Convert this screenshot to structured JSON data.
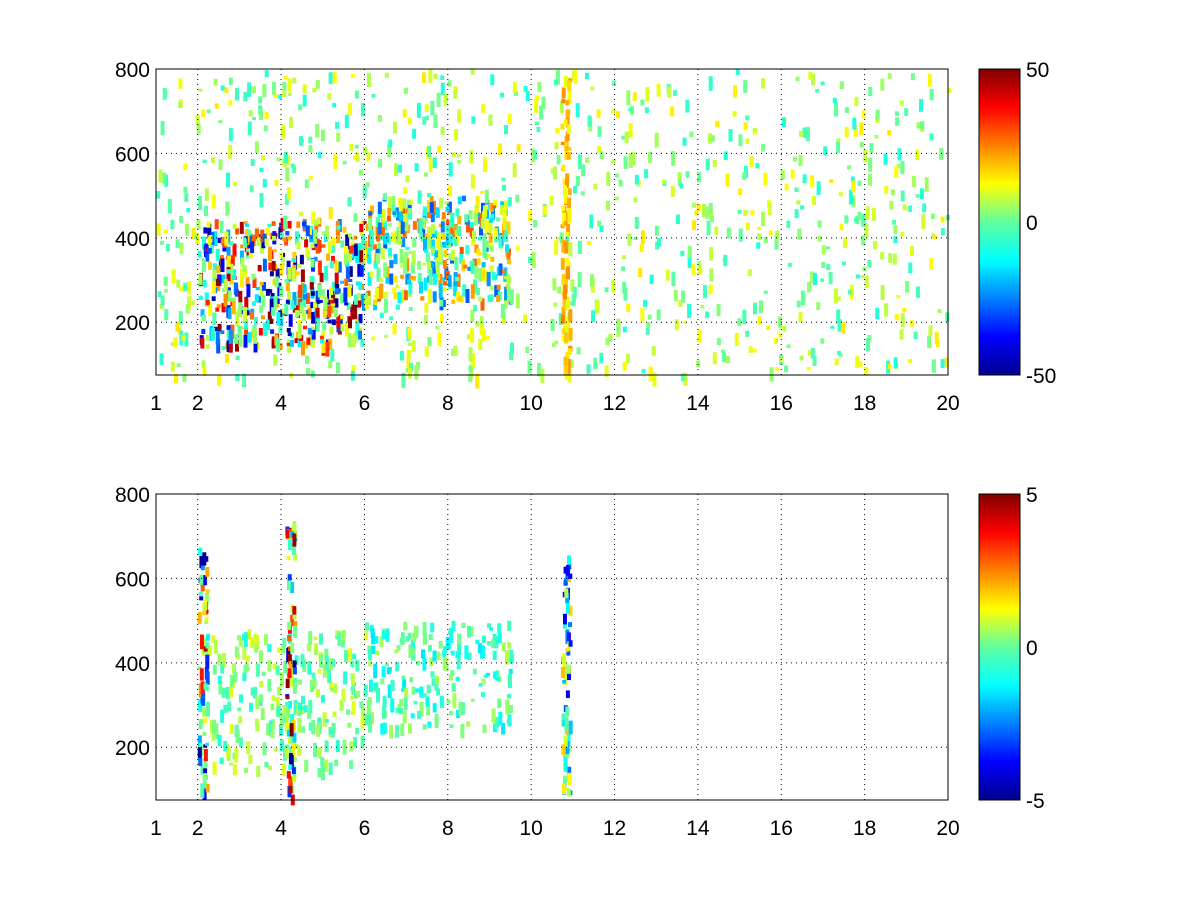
{
  "chart_data": [
    {
      "type": "heatmap",
      "title": "",
      "xlabel": "",
      "ylabel": "",
      "xlim": [
        1,
        20
      ],
      "ylim": [
        75,
        800
      ],
      "x_ticks": [
        1,
        2,
        4,
        6,
        8,
        10,
        12,
        14,
        16,
        18,
        20
      ],
      "x_tick_labels": [
        "1",
        "2",
        "4",
        "6",
        "8",
        "10",
        "12",
        "14",
        "16",
        "18",
        "20"
      ],
      "y_ticks": [
        200,
        400,
        600,
        800
      ],
      "y_tick_labels": [
        "200",
        "400",
        "600",
        "800"
      ],
      "grid": true,
      "colormap": "jet",
      "clim": [
        -50,
        50
      ],
      "colorbar_ticks": [
        -50,
        0,
        50
      ],
      "colorbar_tick_labels": [
        "-50",
        "0",
        "50"
      ],
      "features": [
        {
          "x_range": [
            2,
            6
          ],
          "y_range": [
            150,
            450
          ],
          "value_range": [
            -50,
            50
          ],
          "note": "strong red/blue cluster centered near x=3.5-5.5, y=200-400"
        },
        {
          "x_range": [
            6,
            9.5
          ],
          "y_range": [
            250,
            500
          ],
          "value_range": [
            -30,
            30
          ],
          "note": "cyan/orange/yellow cluster"
        },
        {
          "x_range": [
            1,
            20
          ],
          "y_range": [
            75,
            800
          ],
          "value_range": [
            -10,
            15
          ],
          "note": "sparse green/cyan/yellow scatter elsewhere"
        },
        {
          "x_range": [
            10.7,
            10.9
          ],
          "y_range": [
            75,
            800
          ],
          "value_range": [
            10,
            25
          ],
          "note": "vertical yellow streak near x=10.8"
        }
      ]
    },
    {
      "type": "heatmap",
      "title": "",
      "xlabel": "",
      "ylabel": "",
      "xlim": [
        1,
        20
      ],
      "ylim": [
        75,
        800
      ],
      "x_ticks": [
        1,
        2,
        4,
        6,
        8,
        10,
        12,
        14,
        16,
        18,
        20
      ],
      "x_tick_labels": [
        "1",
        "2",
        "4",
        "6",
        "8",
        "10",
        "12",
        "14",
        "16",
        "18",
        "20"
      ],
      "y_ticks": [
        200,
        400,
        600,
        800
      ],
      "y_tick_labels": [
        "200",
        "400",
        "600",
        "800"
      ],
      "grid": true,
      "colormap": "jet",
      "clim": [
        -5,
        5
      ],
      "colorbar_ticks": [
        -5,
        0,
        5
      ],
      "colorbar_tick_labels": [
        "-5",
        "0",
        "5"
      ],
      "features": [
        {
          "x_range": [
            2,
            6
          ],
          "y_range": [
            150,
            480
          ],
          "value_range": [
            -1,
            1
          ],
          "note": "green/cyan cluster"
        },
        {
          "x_range": [
            6,
            9.5
          ],
          "y_range": [
            250,
            500
          ],
          "value_range": [
            -1.5,
            0.5
          ],
          "note": "cyan/green cluster"
        },
        {
          "x_range": [
            10.7,
            10.9
          ],
          "y_range": [
            90,
            660
          ],
          "value_range": [
            -4,
            2
          ],
          "note": "vertical streak near x=10.8"
        },
        {
          "x_range": [
            2,
            2.2
          ],
          "y_range": [
            100,
            680
          ],
          "value_range": [
            -5,
            5
          ],
          "note": "red/blue column near x=2.1"
        },
        {
          "x_range": [
            4.1,
            4.3
          ],
          "y_range": [
            75,
            780
          ],
          "value_range": [
            -5,
            5
          ],
          "note": "red/blue column near x=4.2"
        }
      ]
    }
  ]
}
